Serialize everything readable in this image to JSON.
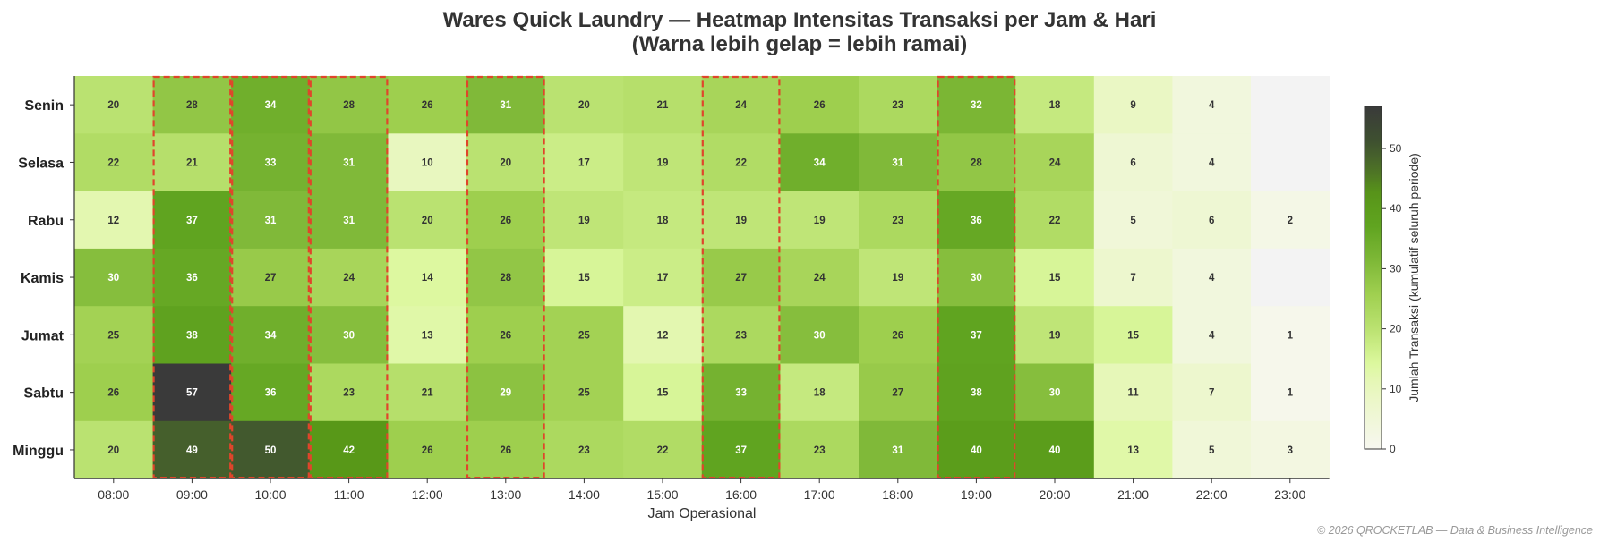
{
  "chart_data": {
    "type": "heatmap",
    "title_line1": "Wares Quick Laundry — Heatmap Intensitas Transaksi per Jam & Hari",
    "title_line2": "(Warna lebih gelap = lebih ramai)",
    "xlabel": "Jam Operasional",
    "ylabel": "",
    "x": [
      "08:00",
      "09:00",
      "10:00",
      "11:00",
      "12:00",
      "13:00",
      "14:00",
      "15:00",
      "16:00",
      "17:00",
      "18:00",
      "19:00",
      "20:00",
      "21:00",
      "22:00",
      "23:00"
    ],
    "y": [
      "Senin",
      "Selasa",
      "Rabu",
      "Kamis",
      "Jumat",
      "Sabtu",
      "Minggu"
    ],
    "values": [
      [
        20,
        28,
        34,
        28,
        26,
        31,
        20,
        21,
        24,
        26,
        23,
        32,
        18,
        9,
        4,
        null
      ],
      [
        22,
        21,
        33,
        31,
        10,
        20,
        17,
        19,
        22,
        34,
        31,
        28,
        24,
        6,
        4,
        null
      ],
      [
        12,
        37,
        31,
        31,
        20,
        26,
        19,
        18,
        19,
        19,
        23,
        36,
        22,
        5,
        6,
        2
      ],
      [
        30,
        36,
        27,
        24,
        14,
        28,
        15,
        17,
        27,
        24,
        19,
        30,
        15,
        7,
        4,
        null
      ],
      [
        25,
        38,
        34,
        30,
        13,
        26,
        25,
        12,
        23,
        30,
        26,
        37,
        19,
        15,
        4,
        1
      ],
      [
        26,
        57,
        36,
        23,
        21,
        29,
        25,
        15,
        33,
        18,
        27,
        38,
        30,
        11,
        7,
        1
      ],
      [
        20,
        49,
        50,
        42,
        26,
        26,
        23,
        22,
        37,
        23,
        31,
        40,
        40,
        13,
        5,
        3
      ]
    ],
    "highlighted_hours": [
      "09:00",
      "10:00",
      "11:00",
      "13:00",
      "16:00",
      "19:00"
    ],
    "highlight_color": "#e0452b",
    "colorbar": {
      "label": "Jumlah Transaksi (kumulatif seluruh periode)",
      "min": 0,
      "max": 57,
      "ticks": [
        0,
        10,
        20,
        30,
        40,
        50
      ]
    },
    "missing_color": "#f3f3f3"
  },
  "footer": {
    "text": "© 2026 QROCKETLAB — Data & Business Intelligence"
  }
}
